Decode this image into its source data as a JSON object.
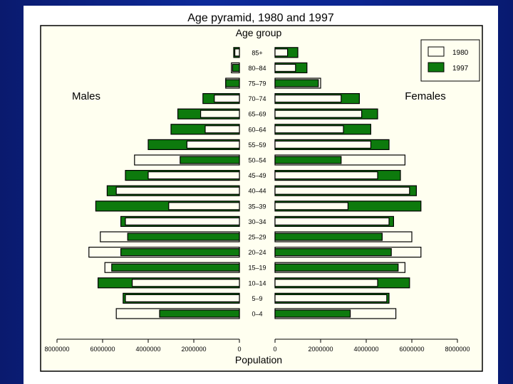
{
  "chart_data": {
    "type": "bar",
    "title": "Age pyramid, 1980 and 1997",
    "ylabel": "Age group",
    "xlabel": "Population",
    "left_label": "Males",
    "right_label": "Females",
    "xlim": [
      0,
      8000000
    ],
    "x_ticks_left": [
      "8000000",
      "6000000",
      "4000000",
      "2000000",
      "0"
    ],
    "x_ticks_right": [
      "0",
      "2000000",
      "4000000",
      "6000000",
      "8000000"
    ],
    "categories": [
      "0–4",
      "5–9",
      "10–14",
      "15–19",
      "20–24",
      "25–29",
      "30–34",
      "35–39",
      "40–44",
      "45–49",
      "50–54",
      "55–59",
      "60–64",
      "65–69",
      "70–74",
      "75–79",
      "80–84",
      "85+"
    ],
    "series": [
      {
        "name": "1980",
        "color": "#fffff0",
        "males": [
          5400000,
          5000000,
          4700000,
          5900000,
          6600000,
          6100000,
          5000000,
          3100000,
          5400000,
          4000000,
          4600000,
          2300000,
          1500000,
          1700000,
          1100000,
          600000,
          350000,
          200000
        ],
        "females": [
          5300000,
          4900000,
          4500000,
          5700000,
          6400000,
          6000000,
          5000000,
          3200000,
          5900000,
          4500000,
          5700000,
          4200000,
          3000000,
          3800000,
          2900000,
          2000000,
          900000,
          550000
        ]
      },
      {
        "name": "1997",
        "color": "#0d7a0d",
        "males": [
          3500000,
          5100000,
          6200000,
          5600000,
          5200000,
          4900000,
          5200000,
          6300000,
          5800000,
          5000000,
          2600000,
          4000000,
          3000000,
          2700000,
          1600000,
          600000,
          300000,
          250000
        ],
        "females": [
          3300000,
          5000000,
          5900000,
          5400000,
          5100000,
          4700000,
          5200000,
          6400000,
          6200000,
          5500000,
          2900000,
          5000000,
          4200000,
          4500000,
          3700000,
          1900000,
          1400000,
          1000000
        ]
      }
    ],
    "legend": {
      "position": "top-right",
      "entries": [
        "1980",
        "1997"
      ]
    }
  }
}
